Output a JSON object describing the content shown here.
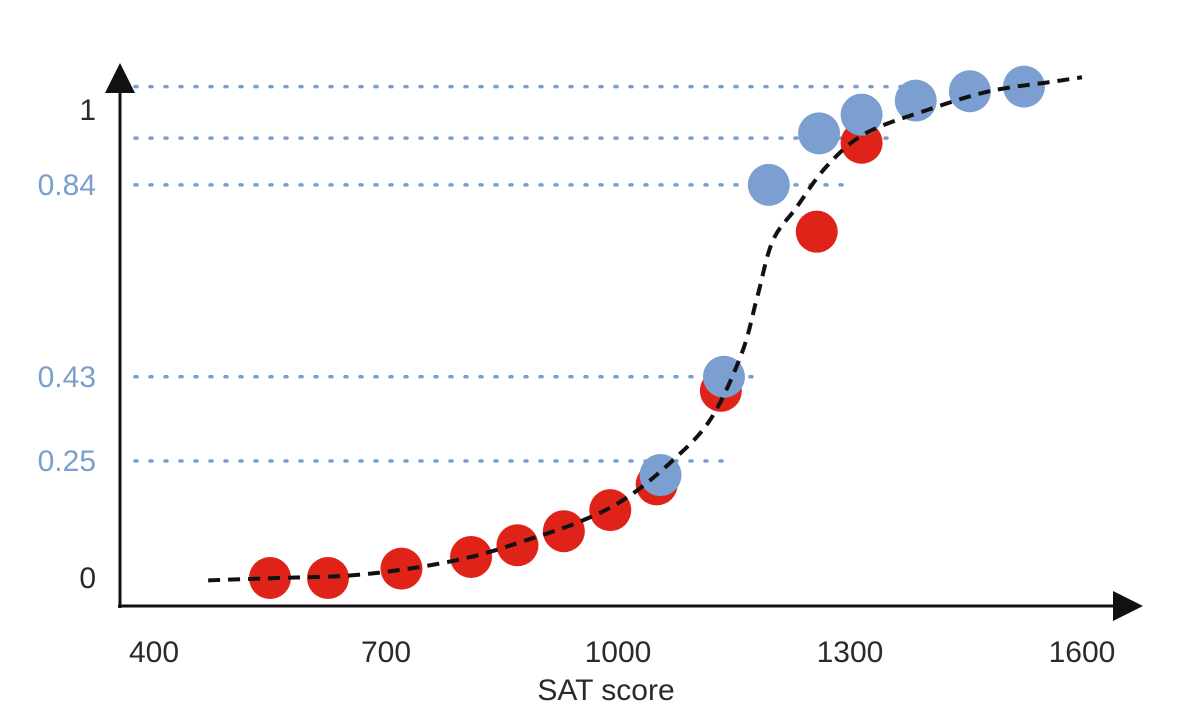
{
  "chart_data": {
    "type": "scatter",
    "title": "",
    "xlabel": "SAT score",
    "ylabel": "",
    "xlim": [
      400,
      1660
    ],
    "ylim": [
      0,
      1.08
    ],
    "grid": false,
    "x_ticks": [
      {
        "value": 400,
        "label": "400"
      },
      {
        "value": 700,
        "label": "700"
      },
      {
        "value": 1000,
        "label": "1000"
      },
      {
        "value": 1300,
        "label": "1300"
      },
      {
        "value": 1600,
        "label": "1600"
      }
    ],
    "y_ticks": [
      {
        "value": 0,
        "label": "0",
        "color": "#2a2a2a"
      },
      {
        "value": 0.25,
        "label": "0.25",
        "color": "#7a9fcc"
      },
      {
        "value": 0.43,
        "label": "0.43",
        "color": "#7a9fcc"
      },
      {
        "value": 0.84,
        "label": "0.84",
        "color": "#7a9fcc"
      },
      {
        "value": 1,
        "label": "1",
        "color": "#2a2a2a"
      }
    ],
    "reference_lines": [
      {
        "y": 0.25,
        "x_end": 1140,
        "color": "#7a9fcc"
      },
      {
        "y": 0.43,
        "x_end": 1190,
        "color": "#7a9fcc"
      },
      {
        "y": 0.84,
        "x_end": 1300,
        "color": "#7a9fcc"
      },
      {
        "y": 0.94,
        "x_end": 1360,
        "color": "#7a9fcc"
      },
      {
        "y": 1.05,
        "x_end": 1400,
        "color": "#7a9fcc"
      }
    ],
    "series": [
      {
        "color": "#e02318",
        "points": [
          {
            "x": 550,
            "y": 0.0
          },
          {
            "x": 625,
            "y": 0.0
          },
          {
            "x": 720,
            "y": 0.02
          },
          {
            "x": 810,
            "y": 0.045
          },
          {
            "x": 870,
            "y": 0.07
          },
          {
            "x": 930,
            "y": 0.1
          },
          {
            "x": 990,
            "y": 0.145
          },
          {
            "x": 1050,
            "y": 0.2
          },
          {
            "x": 1133,
            "y": 0.4
          },
          {
            "x": 1257,
            "y": 0.74
          },
          {
            "x": 1315,
            "y": 0.93
          }
        ]
      },
      {
        "color": "#7b9fd0",
        "points": [
          {
            "x": 1055,
            "y": 0.22
          },
          {
            "x": 1137,
            "y": 0.43
          },
          {
            "x": 1195,
            "y": 0.84
          },
          {
            "x": 1260,
            "y": 0.95
          },
          {
            "x": 1315,
            "y": 0.99
          },
          {
            "x": 1385,
            "y": 1.02
          },
          {
            "x": 1455,
            "y": 1.04
          },
          {
            "x": 1525,
            "y": 1.05
          }
        ]
      }
    ],
    "fit_curve": {
      "style": "dashed",
      "color": "#111111",
      "points": [
        [
          470,
          -0.005
        ],
        [
          560,
          0.0
        ],
        [
          650,
          0.005
        ],
        [
          730,
          0.02
        ],
        [
          810,
          0.045
        ],
        [
          880,
          0.08
        ],
        [
          950,
          0.12
        ],
        [
          1010,
          0.17
        ],
        [
          1070,
          0.25
        ],
        [
          1120,
          0.34
        ],
        [
          1160,
          0.48
        ],
        [
          1180,
          0.6
        ],
        [
          1200,
          0.72
        ],
        [
          1230,
          0.79
        ],
        [
          1270,
          0.88
        ],
        [
          1320,
          0.95
        ],
        [
          1400,
          1.0
        ],
        [
          1480,
          1.04
        ],
        [
          1560,
          1.06
        ],
        [
          1600,
          1.07
        ]
      ]
    }
  }
}
